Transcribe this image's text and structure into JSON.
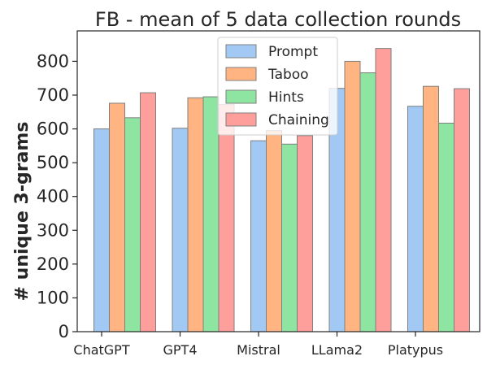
{
  "chart_data": {
    "type": "bar",
    "title": "FB - mean of 5 data collection rounds",
    "xlabel": "",
    "ylabel": "# unique 3-grams",
    "categories": [
      "ChatGPT",
      "GPT4",
      "Mistral",
      "LLama2",
      "Platypus"
    ],
    "series": [
      {
        "name": "Prompt",
        "color": "#a1c9f4",
        "values": [
          600,
          602,
          565,
          720,
          667
        ]
      },
      {
        "name": "Taboo",
        "color": "#ffb482",
        "values": [
          676,
          692,
          595,
          800,
          726
        ]
      },
      {
        "name": "Hints",
        "color": "#8de5a1",
        "values": [
          633,
          695,
          555,
          766,
          617
        ]
      },
      {
        "name": "Chaining",
        "color": "#ff9f9b",
        "values": [
          707,
          672,
          580,
          838,
          719
        ]
      }
    ],
    "ylim": [
      0,
      890
    ],
    "yticks": [
      0,
      100,
      200,
      300,
      400,
      500,
      600,
      700,
      800
    ],
    "grid": false,
    "legend_position": "top-center"
  }
}
